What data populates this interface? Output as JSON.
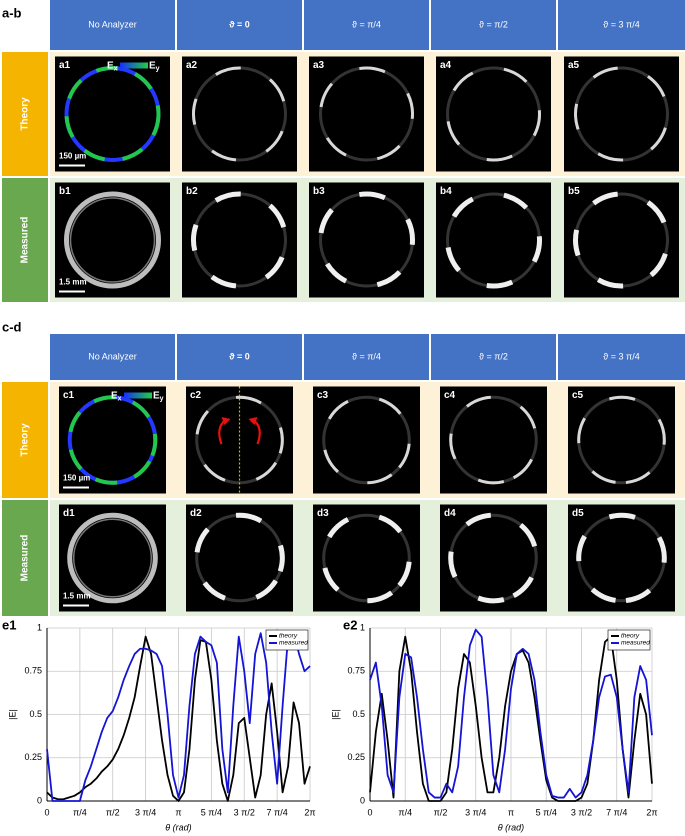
{
  "sections": [
    {
      "label": "a-b",
      "headers": [
        "No Analyzer",
        "ϑ = 0",
        "ϑ = π/4",
        "ϑ = π/2",
        "ϑ = 3 π/4"
      ],
      "rows": [
        {
          "label": "Theory",
          "panels": [
            "a1",
            "a2",
            "a3",
            "a4",
            "a5"
          ],
          "scale_bar": "150 µm"
        },
        {
          "label": "Measured",
          "panels": [
            "b1",
            "b2",
            "b3",
            "b4",
            "b5"
          ],
          "scale_bar": "1.5 mm"
        }
      ]
    },
    {
      "label": "c-d",
      "headers": [
        "No Analyzer",
        "ϑ = 0",
        "ϑ = π/4",
        "ϑ = π/2",
        "ϑ = 3 π/4"
      ],
      "rows": [
        {
          "label": "Theory",
          "panels": [
            "c1",
            "c2",
            "c3",
            "c4",
            "c5"
          ],
          "scale_bar": "150 µm"
        },
        {
          "label": "Measured",
          "panels": [
            "d1",
            "d2",
            "d3",
            "d4",
            "d5"
          ],
          "scale_bar": "1.5 mm"
        }
      ]
    }
  ],
  "colorbar_labels": [
    {
      "main": "E",
      "sub": "x"
    },
    {
      "main": "E",
      "sub": "y"
    }
  ],
  "chart_data": [
    {
      "type": "line",
      "label": "e1",
      "x_label": "θ (rad)",
      "y_label": "|E|",
      "x": [
        0,
        0.1309,
        0.2618,
        0.3927,
        0.5236,
        0.6545,
        0.7854,
        0.9163,
        1.0472,
        1.1781,
        1.309,
        1.4399,
        1.5708,
        1.7017,
        1.8326,
        1.9635,
        2.0944,
        2.2253,
        2.3562,
        2.4871,
        2.618,
        2.7489,
        2.8798,
        3.0107,
        3.1416,
        3.2725,
        3.4034,
        3.5343,
        3.6652,
        3.7961,
        3.927,
        4.0579,
        4.1888,
        4.3197,
        4.4506,
        4.5815,
        4.7124,
        4.8433,
        4.9742,
        5.1051,
        5.236,
        5.3669,
        5.4978,
        5.6287,
        5.7596,
        5.8905,
        6.0214,
        6.1523,
        6.2832
      ],
      "xlim": [
        0,
        6.2832
      ],
      "xticks": [
        0,
        {
          "value": 0.7854,
          "label": "π/4"
        },
        {
          "value": 1.5708,
          "label": "π/2"
        },
        {
          "value": 2.3562,
          "label": "3 π/4"
        },
        {
          "value": 3.1416,
          "label": "π"
        },
        {
          "value": 3.927,
          "label": "5 π/4"
        },
        {
          "value": 4.7124,
          "label": "3 π/2"
        },
        {
          "value": 5.4978,
          "label": "7 π/4"
        },
        {
          "value": 6.2832,
          "label": "2π"
        }
      ],
      "ylim": [
        0,
        1
      ],
      "yticks": [
        0,
        0.25,
        0.5,
        0.75,
        1
      ],
      "grid": true,
      "legend": "upper right",
      "series": [
        {
          "name": "theory",
          "color": "#000000",
          "values": [
            0.05,
            0.02,
            0.01,
            0.01,
            0.02,
            0.03,
            0.05,
            0.08,
            0.1,
            0.13,
            0.17,
            0.2,
            0.24,
            0.3,
            0.38,
            0.48,
            0.6,
            0.78,
            0.95,
            0.85,
            0.6,
            0.35,
            0.15,
            0.03,
            0,
            0.05,
            0.3,
            0.7,
            0.93,
            0.92,
            0.7,
            0.35,
            0.1,
            0,
            0.15,
            0.45,
            0.48,
            0.25,
            0.02,
            0.15,
            0.5,
            0.68,
            0.4,
            0.05,
            0.2,
            0.57,
            0.45,
            0.1,
            0.2
          ]
        },
        {
          "name": "measured",
          "color": "#1414d4",
          "values": [
            0.3,
            0,
            0,
            0,
            0,
            0,
            0,
            0.12,
            0.2,
            0.3,
            0.4,
            0.48,
            0.52,
            0.6,
            0.7,
            0.78,
            0.85,
            0.88,
            0.88,
            0.87,
            0.85,
            0.78,
            0.5,
            0.15,
            0.02,
            0.15,
            0.55,
            0.85,
            0.95,
            0.92,
            0.9,
            0.8,
            0.3,
            0.05,
            0.55,
            0.95,
            0.75,
            0.45,
            0.85,
            0.97,
            0.8,
            0.4,
            0.1,
            0.55,
            0.95,
            0.98,
            0.85,
            0.75,
            0.78
          ]
        }
      ]
    },
    {
      "type": "line",
      "label": "e2",
      "x_label": "θ (rad)",
      "y_label": "|E|",
      "x": [
        0,
        0.1309,
        0.2618,
        0.3927,
        0.5236,
        0.6545,
        0.7854,
        0.9163,
        1.0472,
        1.1781,
        1.309,
        1.4399,
        1.5708,
        1.7017,
        1.8326,
        1.9635,
        2.0944,
        2.2253,
        2.3562,
        2.4871,
        2.618,
        2.7489,
        2.8798,
        3.0107,
        3.1416,
        3.2725,
        3.4034,
        3.5343,
        3.6652,
        3.7961,
        3.927,
        4.0579,
        4.1888,
        4.3197,
        4.4506,
        4.5815,
        4.7124,
        4.8433,
        4.9742,
        5.1051,
        5.236,
        5.3669,
        5.4978,
        5.6287,
        5.7596,
        5.8905,
        6.0214,
        6.1523,
        6.2832
      ],
      "xlim": [
        0,
        6.2832
      ],
      "xticks": [
        0,
        {
          "value": 0.7854,
          "label": "π/4"
        },
        {
          "value": 1.5708,
          "label": "π/2"
        },
        {
          "value": 2.3562,
          "label": "3 π/4"
        },
        {
          "value": 3.1416,
          "label": "π"
        },
        {
          "value": 3.927,
          "label": "5 π/4"
        },
        {
          "value": 4.7124,
          "label": "3 π/2"
        },
        {
          "value": 5.4978,
          "label": "7 π/4"
        },
        {
          "value": 6.2832,
          "label": "2π"
        }
      ],
      "ylim": [
        0,
        1
      ],
      "yticks": [
        0,
        0.25,
        0.5,
        0.75,
        1
      ],
      "grid": true,
      "legend": "upper right",
      "series": [
        {
          "name": "theory",
          "color": "#000000",
          "values": [
            0.05,
            0.4,
            0.62,
            0.35,
            0.02,
            0.75,
            0.95,
            0.75,
            0.4,
            0.1,
            0,
            0,
            0,
            0.05,
            0.3,
            0.65,
            0.85,
            0.8,
            0.55,
            0.25,
            0.05,
            0.05,
            0.25,
            0.55,
            0.75,
            0.85,
            0.87,
            0.8,
            0.6,
            0.35,
            0.12,
            0.02,
            0,
            0,
            0,
            0,
            0.02,
            0.1,
            0.35,
            0.7,
            0.92,
            0.95,
            0.7,
            0.3,
            0.02,
            0.35,
            0.62,
            0.5,
            0.1
          ]
        },
        {
          "name": "measured",
          "color": "#1414d4",
          "values": [
            0.7,
            0.8,
            0.55,
            0.15,
            0.05,
            0.6,
            0.85,
            0.83,
            0.6,
            0.3,
            0.05,
            0.02,
            0.02,
            0.1,
            0.05,
            0.2,
            0.6,
            0.9,
            0.99,
            0.95,
            0.6,
            0.15,
            0.05,
            0.3,
            0.65,
            0.85,
            0.88,
            0.85,
            0.7,
            0.4,
            0.15,
            0.03,
            0.02,
            0.02,
            0.07,
            0.02,
            0.05,
            0.15,
            0.35,
            0.6,
            0.72,
            0.73,
            0.6,
            0.3,
            0.05,
            0.6,
            0.78,
            0.7,
            0.38
          ]
        }
      ]
    }
  ]
}
